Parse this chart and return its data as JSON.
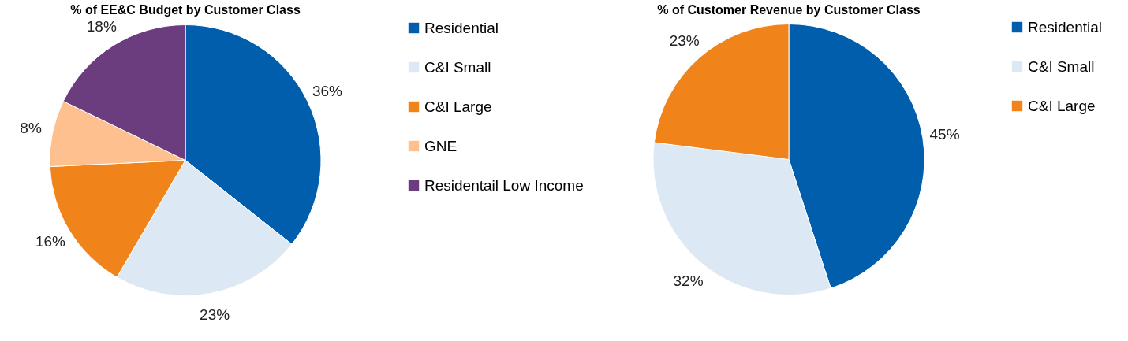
{
  "chart_data": [
    {
      "type": "pie",
      "title": "% of EE&C Budget by Customer Class",
      "categories": [
        "Residential",
        "C&I Small",
        "C&I Large",
        "GNE",
        "Residentail Low Income"
      ],
      "values": [
        36,
        23,
        16,
        8,
        18
      ],
      "colors": [
        "#005eac",
        "#dce9f5",
        "#f0841a",
        "#fdc08e",
        "#6b3d7e"
      ],
      "value_labels": [
        "36%",
        "23%",
        "16%",
        "8%",
        "18%"
      ],
      "legend": "right"
    },
    {
      "type": "pie",
      "title": "% of Customer Revenue by Customer Class",
      "categories": [
        "Residential",
        "C&I Small",
        "C&I Large"
      ],
      "values": [
        45,
        32,
        23
      ],
      "colors": [
        "#005eac",
        "#dce9f5",
        "#f0841a"
      ],
      "value_labels": [
        "45%",
        "32%",
        "23%"
      ],
      "legend": "right"
    }
  ]
}
